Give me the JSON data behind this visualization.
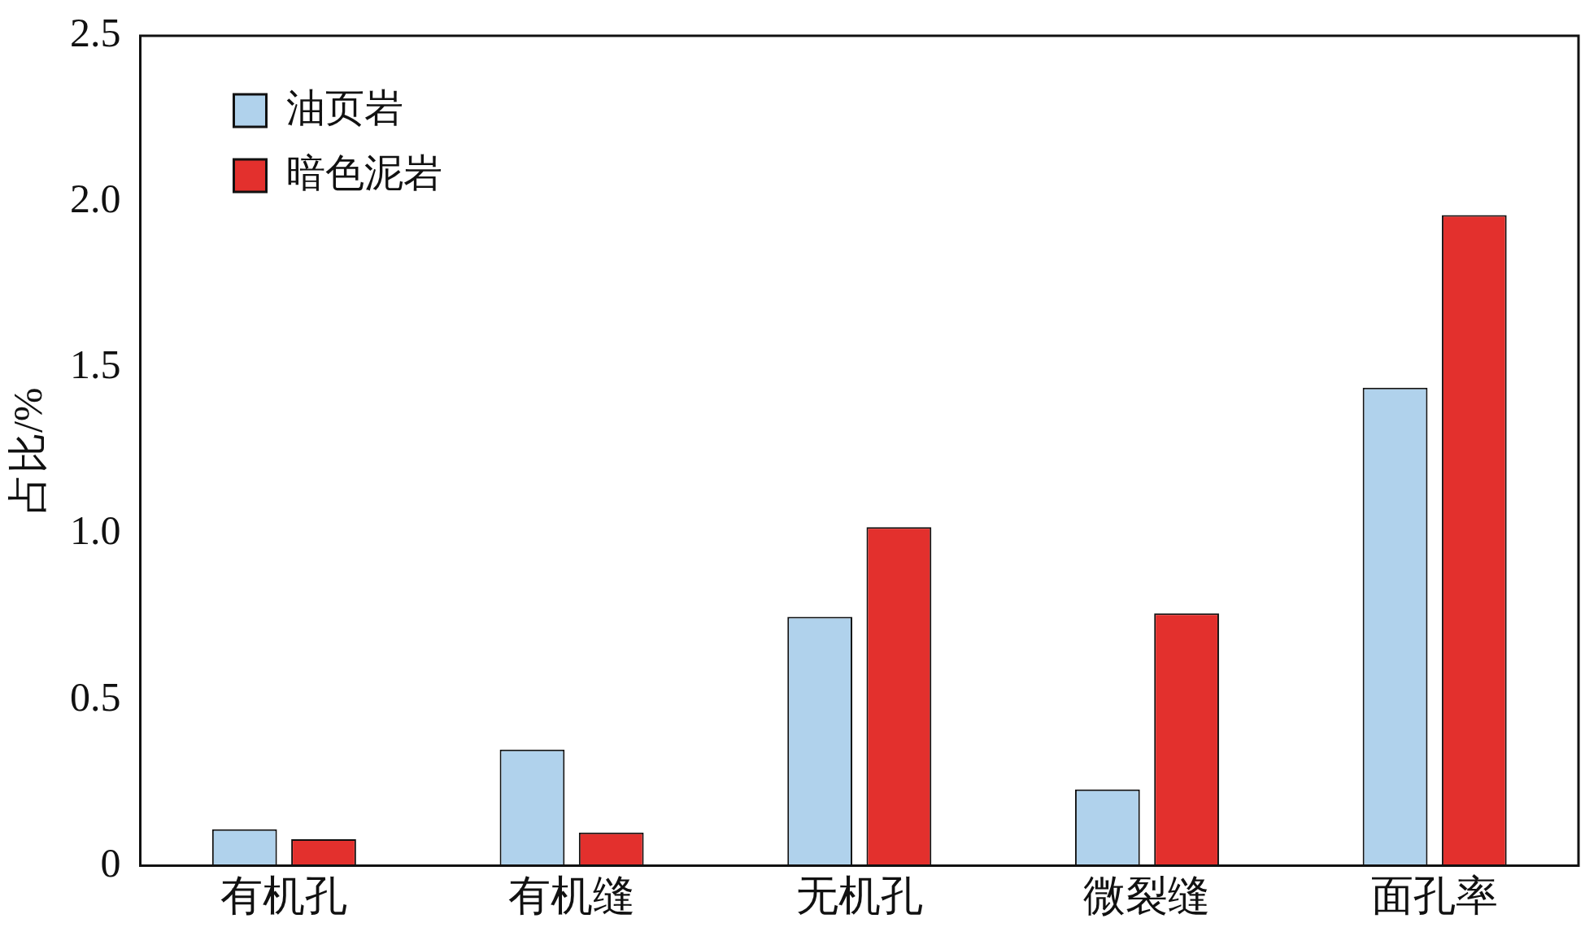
{
  "chart_data": {
    "type": "bar",
    "ylabel": "占比/%",
    "categories": [
      "有机孔",
      "有机缝",
      "无机孔",
      "微裂缝",
      "面孔率"
    ],
    "series": [
      {
        "name": "油页岩",
        "color": "#b0d2ec",
        "values": [
          0.11,
          0.35,
          0.75,
          0.23,
          1.44
        ]
      },
      {
        "name": "暗色泥岩",
        "color": "#e3302d",
        "values": [
          0.08,
          0.1,
          1.02,
          0.76,
          1.96
        ]
      }
    ],
    "ylim": [
      0,
      2.5
    ],
    "yticks": [
      0,
      {
        "value": 0.5,
        "label": "0.5"
      },
      {
        "value": 1,
        "label": "1.0"
      },
      {
        "value": 1.5,
        "label": "1.5"
      },
      {
        "value": 2,
        "label": "2.0"
      },
      {
        "value": 2.5,
        "label": "2.5"
      }
    ],
    "grid": false,
    "legend": "top left"
  }
}
